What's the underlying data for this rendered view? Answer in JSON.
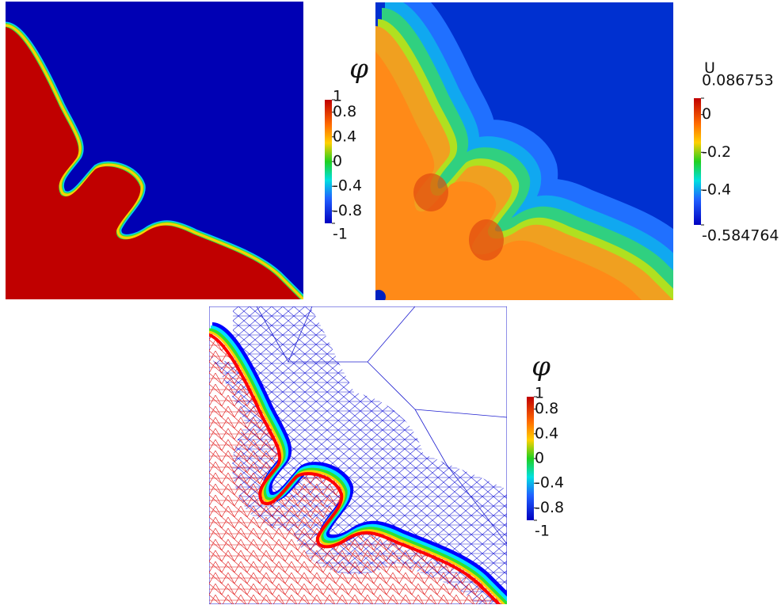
{
  "panels": [
    {
      "colorbar": {
        "title": "φ",
        "ticks": [
          1,
          0.8,
          0.4,
          0,
          -0.4,
          -0.8,
          -1
        ]
      }
    },
    {
      "colorbar": {
        "title": "U",
        "ticks": [
          0.086753,
          0,
          -0.2,
          -0.4,
          -0.584764
        ]
      }
    },
    {
      "colorbar": {
        "title": "φ",
        "ticks": [
          1,
          0.8,
          0.4,
          0,
          -0.4,
          -0.8,
          -1
        ]
      }
    }
  ]
}
